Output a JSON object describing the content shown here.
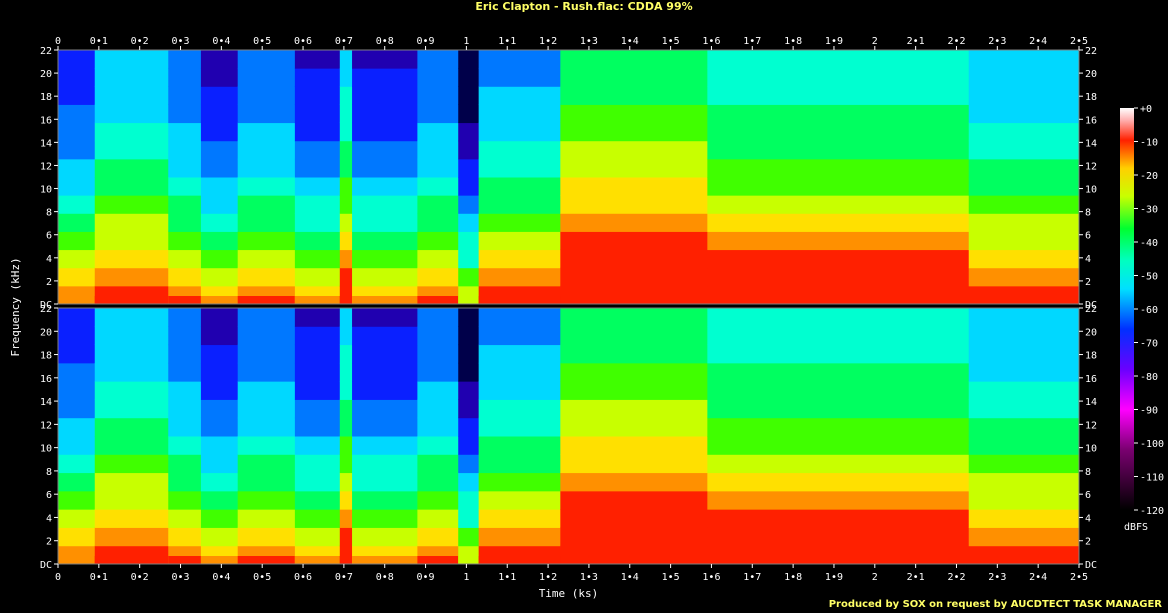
{
  "title": "Eric Clapton - Rush.flac: CDDA 99%",
  "footer": "Produced by SOX on request by AUCDTECT TASK MANAGER",
  "chart_data": {
    "type": "heatmap",
    "title": "Eric Clapton - Rush.flac: CDDA 99%",
    "xlabel": "Time (ks)",
    "ylabel": "Frequency (kHz)",
    "xlim": [
      0,
      2.5
    ],
    "ylim_khz": [
      0,
      22
    ],
    "channels": 2,
    "x_ticks": [
      "0",
      "0•1",
      "0•2",
      "0•3",
      "0•4",
      "0•5",
      "0•6",
      "0•7",
      "0•8",
      "0•9",
      "1",
      "1•1",
      "1•2",
      "1•3",
      "1•4",
      "1•5",
      "1•6",
      "1•7",
      "1•8",
      "1•9",
      "2",
      "2•1",
      "2•2",
      "2•3",
      "2•4",
      "2•5"
    ],
    "x_tick_values": [
      0,
      0.1,
      0.2,
      0.3,
      0.4,
      0.5,
      0.6,
      0.7,
      0.8,
      0.9,
      1.0,
      1.1,
      1.2,
      1.3,
      1.4,
      1.5,
      1.6,
      1.7,
      1.8,
      1.9,
      2.0,
      2.1,
      2.2,
      2.3,
      2.4,
      2.5
    ],
    "y_ticks": [
      "DC",
      "2",
      "4",
      "6",
      "8",
      "10",
      "12",
      "14",
      "16",
      "18",
      "20",
      "22"
    ],
    "y_tick_values": [
      0,
      2,
      4,
      6,
      8,
      10,
      12,
      14,
      16,
      18,
      20,
      22
    ],
    "colorbar": {
      "label": "dBFS",
      "ticks": [
        "+0",
        "-10",
        "-20",
        "-30",
        "-40",
        "-50",
        "-60",
        "-70",
        "-80",
        "-90",
        "-100",
        "-110",
        "-120"
      ],
      "range": [
        -120,
        0
      ]
    },
    "segments_ks": [
      {
        "start": 0.0,
        "end": 0.09,
        "level": 0.35
      },
      {
        "start": 0.09,
        "end": 0.27,
        "level": 0.5
      },
      {
        "start": 0.27,
        "end": 0.35,
        "level": 0.4
      },
      {
        "start": 0.35,
        "end": 0.44,
        "level": 0.28
      },
      {
        "start": 0.44,
        "end": 0.58,
        "level": 0.4
      },
      {
        "start": 0.58,
        "end": 0.69,
        "level": 0.3
      },
      {
        "start": 0.69,
        "end": 0.72,
        "level": 0.55
      },
      {
        "start": 0.72,
        "end": 0.88,
        "level": 0.3
      },
      {
        "start": 0.88,
        "end": 0.98,
        "level": 0.4
      },
      {
        "start": 0.98,
        "end": 1.03,
        "level": 0.15
      },
      {
        "start": 1.03,
        "end": 1.23,
        "level": 0.45
      },
      {
        "start": 1.23,
        "end": 1.59,
        "level": 0.72
      },
      {
        "start": 1.59,
        "end": 2.23,
        "level": 0.62
      },
      {
        "start": 2.23,
        "end": 2.5,
        "level": 0.5
      }
    ]
  }
}
